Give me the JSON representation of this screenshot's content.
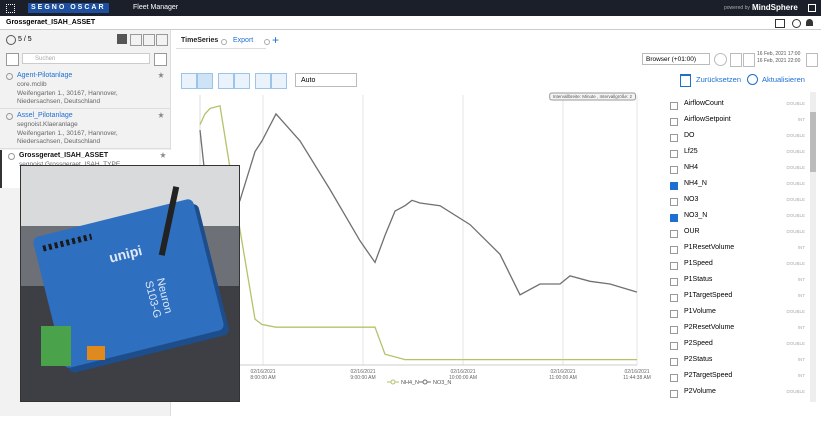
{
  "header": {
    "brand": "SEGNO OSCAR",
    "app": "Fleet Manager",
    "powered_by": "powered by",
    "platform": "MindSphere"
  },
  "asset_title": "Grossgeraet_ISAH_ASSET",
  "sidebar": {
    "count": "5 / 5",
    "search_placeholder": "Suchen",
    "assets": [
      {
        "name": "Agent-Pilotanlage",
        "type": "core.mclib",
        "address": "Weifengarten 1., 30167, Hannover, Niedersachsen, Deutschland"
      },
      {
        "name": "Assel_Pilotanlage",
        "type": "segnoist.Klaeranlage",
        "address": "Weifengarten 1., 30167, Hannover, Niedersachsen, Deutschland"
      },
      {
        "name": "Grossgeraet_ISAH_ASSET",
        "type": "segnoist.Grossgeraet_ISAH_TYPE",
        "address": null
      }
    ]
  },
  "tabs": [
    "TimeSeries",
    "Export"
  ],
  "toolbar": {
    "aggregation": "Auto",
    "timezone": "Browser (+01:00)",
    "range_from": "16 Feb, 2021 17:00",
    "range_to": "16 Feb, 2021 22:00",
    "reset": "Zurücksetzen",
    "refresh": "Aktualisieren"
  },
  "chart_data": {
    "type": "line",
    "annotation": "Intervallbreite: Minute , Intervallgröße: 2",
    "x": [
      7.37,
      7.42,
      7.47,
      7.57,
      7.77,
      7.92,
      7.99,
      8.13,
      8.37,
      8.67,
      8.97,
      9.12,
      9.22,
      9.32,
      9.42,
      9.49,
      9.57,
      9.77,
      10.07,
      10.37,
      10.57,
      10.77,
      10.97,
      11.07,
      11.27,
      11.47,
      11.74
    ],
    "xlim": [
      7.37,
      11.74
    ],
    "xticks": [
      {
        "value": 8,
        "label": "02/16/2021 8:00:00 AM"
      },
      {
        "value": 9,
        "label": "02/16/2021 9:00:00 AM"
      },
      {
        "value": 10,
        "label": "02/16/2021 10:00:00 AM"
      },
      {
        "value": 11,
        "label": "02/16/2021 11:00:00 AM"
      },
      {
        "value": 11.74,
        "label": "02/16/2021 11:44:38 AM"
      }
    ],
    "ylim": [
      0,
      100
    ],
    "grid": true,
    "series": [
      {
        "name": "NH4_N",
        "color": "#b5c26a",
        "values": [
          89,
          93,
          95,
          96,
          50,
          17,
          15,
          14,
          14,
          14,
          14,
          14,
          4,
          3,
          2,
          2,
          2,
          2,
          2,
          2,
          2,
          2,
          2,
          2,
          2,
          2,
          2
        ]
      },
      {
        "name": "NO3_N",
        "color": "#707070",
        "values": [
          87,
          70,
          54,
          43,
          61,
          79,
          83,
          93,
          83,
          65,
          46,
          38,
          48,
          57,
          59,
          61,
          60,
          59,
          52,
          41,
          26,
          30,
          30,
          33,
          31,
          30,
          27
        ]
      }
    ]
  },
  "variables": [
    {
      "name": "AirflowCount",
      "type": "DOUBLE",
      "checked": false
    },
    {
      "name": "AirflowSetpoint",
      "type": "INT",
      "checked": false
    },
    {
      "name": "DO",
      "type": "DOUBLE",
      "checked": false
    },
    {
      "name": "Lf25",
      "type": "DOUBLE",
      "checked": false
    },
    {
      "name": "NH4",
      "type": "DOUBLE",
      "checked": false
    },
    {
      "name": "NH4_N",
      "type": "DOUBLE",
      "checked": true
    },
    {
      "name": "NO3",
      "type": "DOUBLE",
      "checked": false
    },
    {
      "name": "NO3_N",
      "type": "DOUBLE",
      "checked": true
    },
    {
      "name": "OUR",
      "type": "DOUBLE",
      "checked": false
    },
    {
      "name": "P1ResetVolume",
      "type": "INT",
      "checked": false
    },
    {
      "name": "P1Speed",
      "type": "DOUBLE",
      "checked": false
    },
    {
      "name": "P1Status",
      "type": "INT",
      "checked": false
    },
    {
      "name": "P1TargetSpeed",
      "type": "INT",
      "checked": false
    },
    {
      "name": "P1Volume",
      "type": "DOUBLE",
      "checked": false
    },
    {
      "name": "P2ResetVolume",
      "type": "INT",
      "checked": false
    },
    {
      "name": "P2Speed",
      "type": "DOUBLE",
      "checked": false
    },
    {
      "name": "P2Status",
      "type": "INT",
      "checked": false
    },
    {
      "name": "P2TargetSpeed",
      "type": "INT",
      "checked": false
    },
    {
      "name": "P2Volume",
      "type": "DOUBLE",
      "checked": false
    }
  ],
  "photo": {
    "brand": "unipi",
    "model": "Neuron S103-G"
  }
}
